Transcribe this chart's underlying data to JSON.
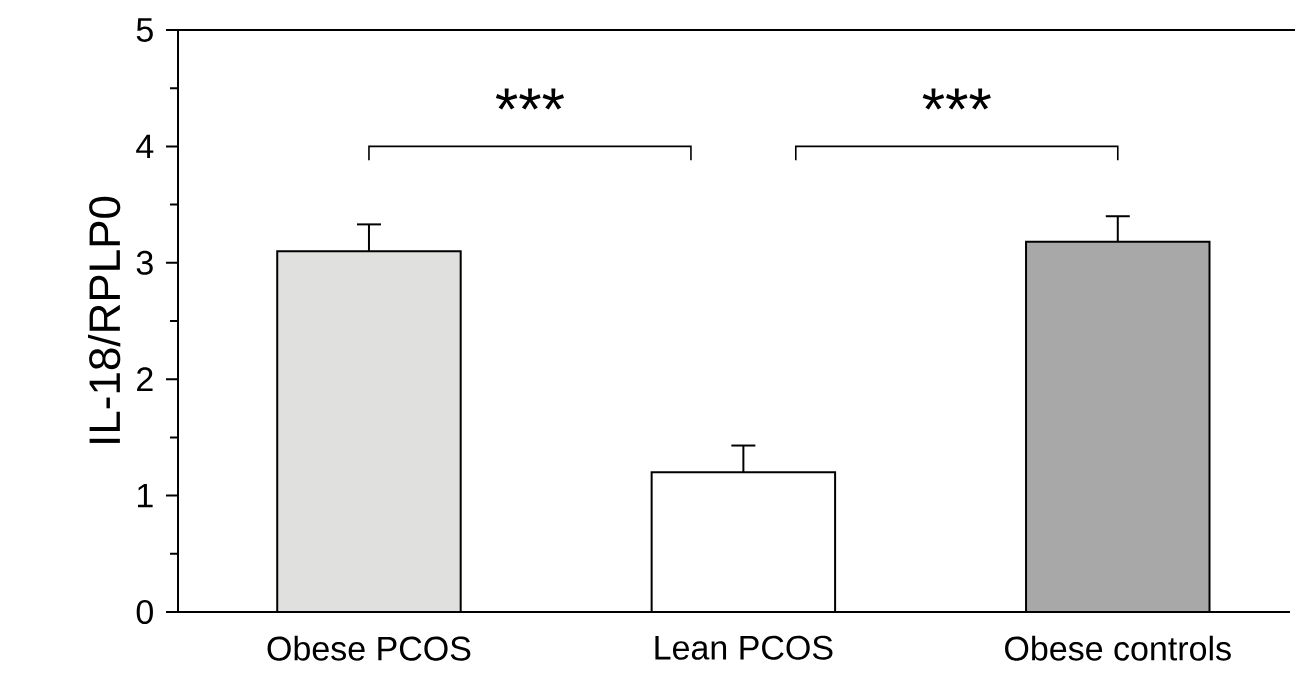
{
  "chart_data": {
    "type": "bar",
    "ylabel": "IL-18/RPLP0",
    "categories": [
      "Obese PCOS",
      "Lean PCOS",
      "Obese controls"
    ],
    "values": [
      3.1,
      1.2,
      3.18
    ],
    "colors": [
      "#e0e0de",
      "#ffffff",
      "#a8a8a8"
    ],
    "errors": [
      0.23,
      0.23,
      0.22
    ],
    "ylim": [
      0,
      5
    ],
    "yticks": [
      0,
      1,
      2,
      3,
      4,
      5
    ],
    "annotations": [
      "***",
      "***"
    ],
    "grid": false
  }
}
